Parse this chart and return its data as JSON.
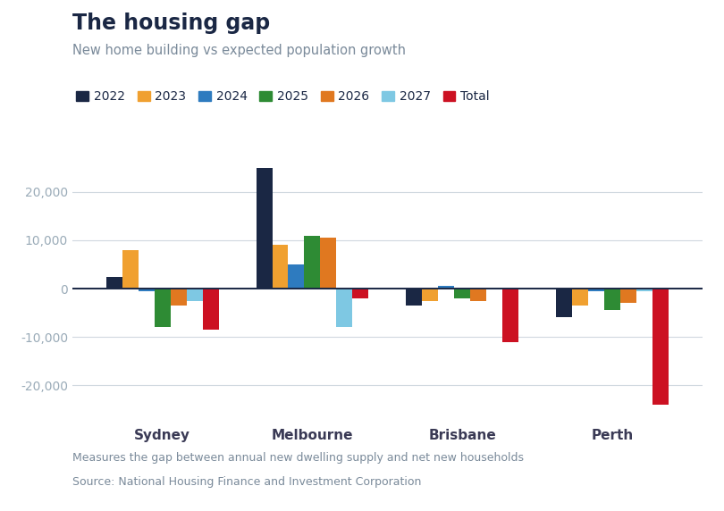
{
  "title": "The housing gap",
  "subtitle": "New home building vs expected population growth",
  "footnote": "Measures the gap between annual new dwelling supply and net new households",
  "source": "Source: National Housing Finance and Investment Corporation",
  "categories": [
    "Sydney",
    "Melbourne",
    "Brisbane",
    "Perth"
  ],
  "series": {
    "2022": {
      "color": "#1a2744",
      "values": [
        2500,
        25000,
        -3500,
        -6000
      ]
    },
    "2023": {
      "color": "#f0a030",
      "values": [
        8000,
        9000,
        -2500,
        -3500
      ]
    },
    "2024": {
      "color": "#2e7bbf",
      "values": [
        -500,
        5000,
        500,
        -500
      ]
    },
    "2025": {
      "color": "#2e8b34",
      "values": [
        -8000,
        11000,
        -2000,
        -4500
      ]
    },
    "2026": {
      "color": "#e07820",
      "values": [
        -3500,
        10500,
        -2500,
        -3000
      ]
    },
    "2027": {
      "color": "#7ec8e3",
      "values": [
        -2500,
        -8000,
        200,
        -500
      ]
    },
    "Total": {
      "color": "#cc1122",
      "values": [
        -8500,
        -2000,
        -11000,
        -24000
      ]
    }
  },
  "ylim": [
    -27000,
    28000
  ],
  "yticks": [
    -20000,
    -10000,
    0,
    10000,
    20000
  ],
  "background_color": "#ffffff",
  "title_color": "#1a2744",
  "subtitle_color": "#7a8a9a",
  "axis_color": "#d0d8df",
  "zero_line_color": "#1a2744",
  "tick_label_color": "#9aabb8",
  "category_label_color": "#3a3a55",
  "title_fontsize": 17,
  "subtitle_fontsize": 10.5,
  "legend_fontsize": 10,
  "tick_fontsize": 10,
  "category_fontsize": 11,
  "footnote_fontsize": 9,
  "source_fontsize": 9
}
